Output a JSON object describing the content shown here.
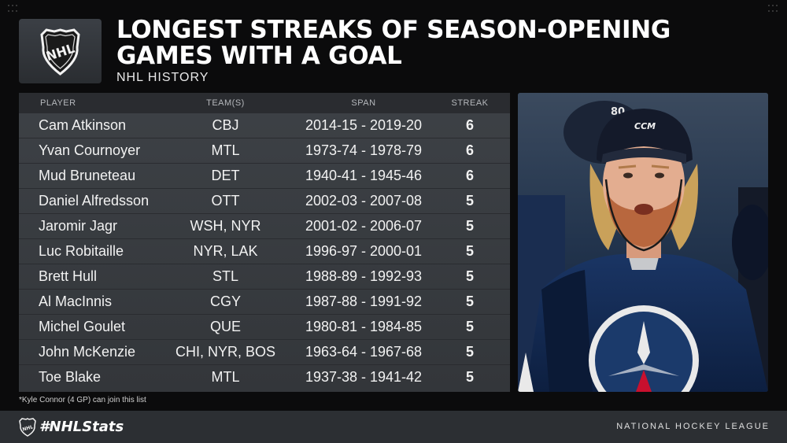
{
  "header": {
    "title": "Longest Streaks of Season-Opening Games with a Goal",
    "subtitle": "NHL HISTORY",
    "logo_icon": "nhl-shield-logo"
  },
  "table": {
    "columns": [
      "PLAYER",
      "TEAM(S)",
      "SPAN",
      "STREAK"
    ],
    "rows": [
      {
        "player": "Cam Atkinson",
        "teams": "CBJ",
        "span": "2014-15 - 2019-20",
        "streak": "6"
      },
      {
        "player": "Yvan Cournoyer",
        "teams": "MTL",
        "span": "1973-74 - 1978-79",
        "streak": "6"
      },
      {
        "player": "Mud Bruneteau",
        "teams": "DET",
        "span": "1940-41 - 1945-46",
        "streak": "6"
      },
      {
        "player": "Daniel Alfredsson",
        "teams": "OTT",
        "span": "2002-03 - 2007-08",
        "streak": "5"
      },
      {
        "player": "Jaromir Jagr",
        "teams": "WSH, NYR",
        "span": "2001-02 - 2006-07",
        "streak": "5"
      },
      {
        "player": "Luc Robitaille",
        "teams": "NYR, LAK",
        "span": "1996-97 - 2000-01",
        "streak": "5"
      },
      {
        "player": "Brett Hull",
        "teams": "STL",
        "span": "1988-89 - 1992-93",
        "streak": "5"
      },
      {
        "player": "Al MacInnis",
        "teams": "CGY",
        "span": "1987-88 - 1991-92",
        "streak": "5"
      },
      {
        "player": "Michel Goulet",
        "teams": "QUE",
        "span": "1980-81 - 1984-85",
        "streak": "5"
      },
      {
        "player": "John McKenzie",
        "teams": "CHI, NYR, BOS",
        "span": "1963-64 - 1967-68",
        "streak": "5"
      },
      {
        "player": "Toe Blake",
        "teams": "MTL",
        "span": "1937-38 - 1941-42",
        "streak": "5"
      }
    ]
  },
  "footnote": "*Kyle Connor (4 GP) can join this list",
  "footer": {
    "hashtag": "#NHLStats",
    "league": "NATIONAL HOCKEY LEAGUE",
    "logo_icon": "nhl-shield-small-logo"
  },
  "photo": {
    "icon": "hockey-player-photo",
    "helmet_text": "CCM",
    "jersey_number": "80"
  },
  "colors": {
    "background": "#0b0b0c",
    "table_header": "#2a2c30",
    "table_row": "#3a3d42",
    "footer": "#2c2f33",
    "jets_navy": "#0f2548",
    "jets_red": "#c8102e"
  }
}
